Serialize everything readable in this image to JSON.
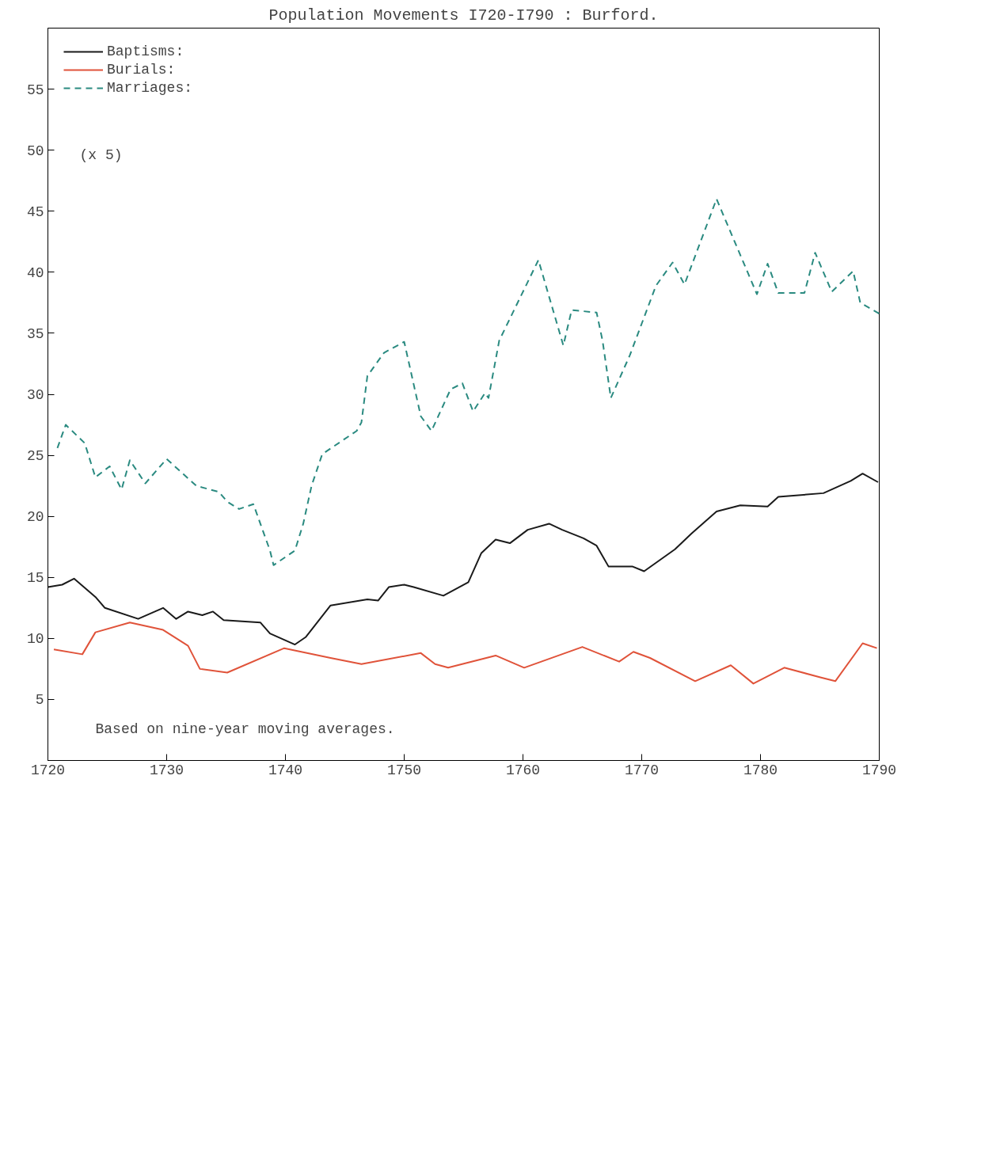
{
  "chart_data": {
    "type": "line",
    "title": "Population Movements I720-I790 : Burford.",
    "xlim": [
      1720,
      1790
    ],
    "ylim": [
      0,
      60
    ],
    "xticks": [
      1720,
      1730,
      1740,
      1750,
      1760,
      1770,
      1780,
      1790
    ],
    "yticks": [
      5,
      10,
      15,
      20,
      25,
      30,
      35,
      40,
      45,
      50,
      55
    ],
    "legend": "top left",
    "grid": false,
    "line_style": "solid",
    "annotations": [
      "(x 5)",
      "Based on nine-year moving averages."
    ],
    "series": [
      {
        "name": "Baptisms:",
        "color": "#1a1a1a",
        "x": [
          1720,
          1721.2,
          1722.2,
          1724,
          1724.8,
          1727.6,
          1729.7,
          1730.8,
          1731.8,
          1733,
          1733.9,
          1734.8,
          1737.9,
          1738.7,
          1740.8,
          1741.7,
          1743.8,
          1746.9,
          1747.8,
          1748.7,
          1750,
          1750.8,
          1753.3,
          1755.4,
          1756.5,
          1757.7,
          1758.9,
          1760.4,
          1762.2,
          1763.3,
          1765.1,
          1766.2,
          1767.2,
          1769.2,
          1770.2,
          1772.8,
          1774.2,
          1776.3,
          1778.3,
          1780.6,
          1781.5,
          1785.3,
          1787.6,
          1788.6,
          1789.9
        ],
        "values": [
          14.2,
          14.4,
          14.9,
          13.4,
          12.5,
          11.6,
          12.5,
          11.6,
          12.2,
          11.9,
          12.2,
          11.5,
          11.3,
          10.4,
          9.5,
          10.1,
          12.7,
          13.2,
          13.1,
          14.2,
          14.4,
          14.2,
          13.5,
          14.6,
          17,
          18.1,
          17.8,
          18.9,
          19.4,
          18.9,
          18.2,
          17.6,
          15.9,
          15.9,
          15.5,
          17.3,
          18.6,
          20.4,
          20.9,
          20.8,
          21.6,
          21.9,
          22.9,
          23.5,
          22.8
        ]
      },
      {
        "name": "Burials:",
        "color": "#e0533a",
        "x": [
          1720.5,
          1722.9,
          1724,
          1726.9,
          1729.7,
          1731.8,
          1732.8,
          1735.1,
          1739.9,
          1743.8,
          1746.4,
          1751.4,
          1752.6,
          1753.7,
          1757.7,
          1760.1,
          1765,
          1768.1,
          1769.3,
          1770.7,
          1774.5,
          1777.5,
          1779.4,
          1782,
          1785.1,
          1786.3,
          1788.6,
          1789.8
        ],
        "values": [
          9.1,
          8.7,
          10.5,
          11.3,
          10.7,
          9.4,
          7.5,
          7.2,
          9.2,
          8.4,
          7.9,
          8.8,
          7.9,
          7.6,
          8.6,
          7.6,
          9.3,
          8.1,
          8.9,
          8.4,
          6.5,
          7.8,
          6.3,
          7.6,
          6.8,
          6.5,
          9.6,
          9.2
        ]
      },
      {
        "name": "Marriages:",
        "color": "#2a8a80",
        "line_style": "dashed",
        "x": [
          1720.8,
          1721.5,
          1723.1,
          1724,
          1725.2,
          1726.2,
          1726.9,
          1728.2,
          1730,
          1732.5,
          1734.4,
          1735.1,
          1736.1,
          1737.3,
          1738.7,
          1739,
          1740.8,
          1741.5,
          1742.2,
          1743.1,
          1746,
          1746.4,
          1746.9,
          1748.3,
          1750,
          1751.4,
          1752.3,
          1753.9,
          1754.9,
          1755.8,
          1756.8,
          1757.1,
          1758,
          1761.3,
          1763.4,
          1764.1,
          1766.2,
          1766.7,
          1767.4,
          1769,
          1771.2,
          1772.6,
          1773.6,
          1776.3,
          1779.7,
          1780.6,
          1781.5,
          1783.7,
          1784.6,
          1786,
          1787.8,
          1788.4,
          1790
        ],
        "values": [
          25.6,
          27.5,
          26,
          23.2,
          24.1,
          22.2,
          24.6,
          22.7,
          24.7,
          22.5,
          22,
          21.2,
          20.6,
          21,
          17.2,
          16,
          17.2,
          19.4,
          22.5,
          25.1,
          27,
          27.7,
          31.5,
          33.4,
          34.3,
          28.2,
          27,
          30.4,
          30.9,
          28.6,
          30.1,
          29.7,
          34.4,
          41,
          34,
          36.9,
          36.7,
          34.4,
          29.7,
          33.2,
          38.9,
          40.8,
          39,
          46,
          38.2,
          40.7,
          38.3,
          38.3,
          41.6,
          38.4,
          40.1,
          37.5,
          36.6
        ]
      }
    ]
  }
}
